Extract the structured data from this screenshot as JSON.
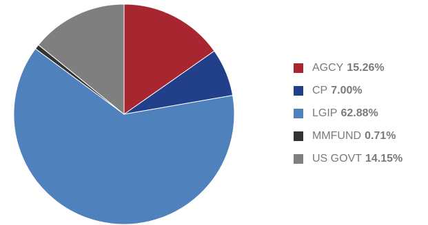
{
  "chart_data": {
    "type": "pie",
    "title": "",
    "slices": [
      {
        "label": "AGCY",
        "value": 15.26,
        "value_text": "15.26%",
        "color": "#a8262f"
      },
      {
        "label": "CP",
        "value": 7.0,
        "value_text": "7.00%",
        "color": "#223f8a"
      },
      {
        "label": "LGIP",
        "value": 62.88,
        "value_text": "62.88%",
        "color": "#4f81bd"
      },
      {
        "label": "MMFUND",
        "value": 0.71,
        "value_text": "0.71%",
        "color": "#333333"
      },
      {
        "label": "US GOVT",
        "value": 14.15,
        "value_text": "14.15%",
        "color": "#7f7f7f"
      }
    ],
    "legend_position": "right",
    "start_angle": "12 o'clock",
    "direction": "clockwise"
  }
}
